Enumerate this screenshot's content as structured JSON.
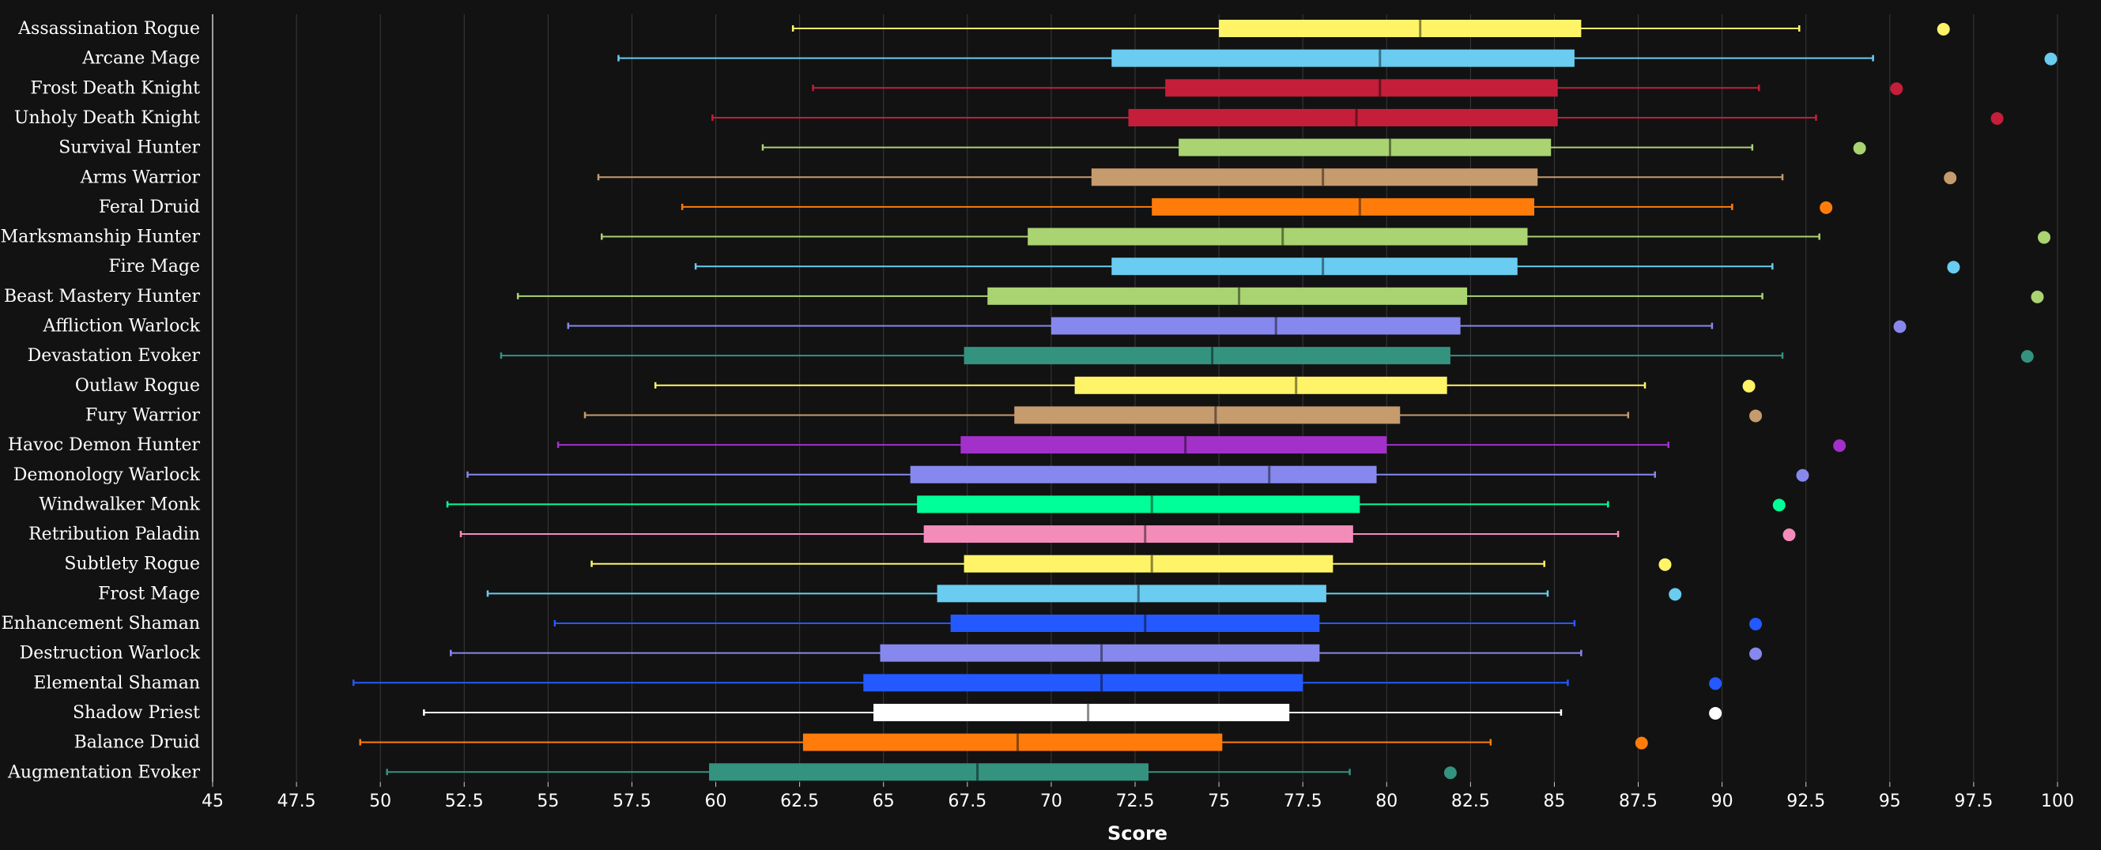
{
  "chart_data": {
    "type": "boxplot",
    "xlabel": "Score",
    "xlim": [
      45,
      100
    ],
    "xticks": [
      "45",
      "47.5",
      "50",
      "52.5",
      "55",
      "57.5",
      "60",
      "62.5",
      "65",
      "67.5",
      "70",
      "72.5",
      "75",
      "77.5",
      "80",
      "82.5",
      "85",
      "87.5",
      "90",
      "92.5",
      "95",
      "97.5",
      "100"
    ],
    "grid": "vertical",
    "series": [
      {
        "name": "Assassination Rogue",
        "color": "#FFF468",
        "min": 62.3,
        "q1": 75.0,
        "median": 81.0,
        "q3": 85.8,
        "max": 92.3,
        "outlier": 96.6
      },
      {
        "name": "Arcane Mage",
        "color": "#69CCF0",
        "min": 57.1,
        "q1": 71.8,
        "median": 79.8,
        "q3": 85.6,
        "max": 94.5,
        "outlier": 99.8
      },
      {
        "name": "Frost Death Knight",
        "color": "#C41E3A",
        "min": 62.9,
        "q1": 73.4,
        "median": 79.8,
        "q3": 85.1,
        "max": 91.1,
        "outlier": 95.2
      },
      {
        "name": "Unholy Death Knight",
        "color": "#C41E3A",
        "min": 59.9,
        "q1": 72.3,
        "median": 79.1,
        "q3": 85.1,
        "max": 92.8,
        "outlier": 98.2
      },
      {
        "name": "Survival Hunter",
        "color": "#AAD372",
        "min": 61.4,
        "q1": 73.8,
        "median": 80.1,
        "q3": 84.9,
        "max": 90.9,
        "outlier": 94.1
      },
      {
        "name": "Arms Warrior",
        "color": "#C69B6D",
        "min": 56.5,
        "q1": 71.2,
        "median": 78.1,
        "q3": 84.5,
        "max": 91.8,
        "outlier": 96.8
      },
      {
        "name": "Feral Druid",
        "color": "#FF7C0A",
        "min": 59.0,
        "q1": 73.0,
        "median": 79.2,
        "q3": 84.4,
        "max": 90.3,
        "outlier": 93.1
      },
      {
        "name": "Marksmanship Hunter",
        "color": "#AAD372",
        "min": 56.6,
        "q1": 69.3,
        "median": 76.9,
        "q3": 84.2,
        "max": 92.9,
        "outlier": 99.6
      },
      {
        "name": "Fire Mage",
        "color": "#69CCF0",
        "min": 59.4,
        "q1": 71.8,
        "median": 78.1,
        "q3": 83.9,
        "max": 91.5,
        "outlier": 96.9
      },
      {
        "name": "Beast Mastery Hunter",
        "color": "#AAD372",
        "min": 54.1,
        "q1": 68.1,
        "median": 75.6,
        "q3": 82.4,
        "max": 91.2,
        "outlier": 99.4
      },
      {
        "name": "Affliction Warlock",
        "color": "#8788EE",
        "min": 55.6,
        "q1": 70.0,
        "median": 76.7,
        "q3": 82.2,
        "max": 89.7,
        "outlier": 95.3
      },
      {
        "name": "Devastation Evoker",
        "color": "#33937F",
        "min": 53.6,
        "q1": 67.4,
        "median": 74.8,
        "q3": 81.9,
        "max": 91.8,
        "outlier": 99.1
      },
      {
        "name": "Outlaw Rogue",
        "color": "#FFF468",
        "min": 58.2,
        "q1": 70.7,
        "median": 77.3,
        "q3": 81.8,
        "max": 87.7,
        "outlier": 90.8
      },
      {
        "name": "Fury Warrior",
        "color": "#C69B6D",
        "min": 56.1,
        "q1": 68.9,
        "median": 74.9,
        "q3": 80.4,
        "max": 87.2,
        "outlier": 91.0
      },
      {
        "name": "Havoc Demon Hunter",
        "color": "#A330C9",
        "min": 55.3,
        "q1": 67.3,
        "median": 74.0,
        "q3": 80.0,
        "max": 88.4,
        "outlier": 93.5
      },
      {
        "name": "Demonology Warlock",
        "color": "#8788EE",
        "min": 52.6,
        "q1": 65.8,
        "median": 76.5,
        "q3": 79.7,
        "max": 88.0,
        "outlier": 92.4
      },
      {
        "name": "Windwalker Monk",
        "color": "#00FF98",
        "min": 52.0,
        "q1": 66.0,
        "median": 73.0,
        "q3": 79.2,
        "max": 86.6,
        "outlier": 91.7
      },
      {
        "name": "Retribution Paladin",
        "color": "#F48CBA",
        "min": 52.4,
        "q1": 66.2,
        "median": 72.8,
        "q3": 79.0,
        "max": 86.9,
        "outlier": 92.0
      },
      {
        "name": "Subtlety Rogue",
        "color": "#FFF468",
        "min": 56.3,
        "q1": 67.4,
        "median": 73.0,
        "q3": 78.4,
        "max": 84.7,
        "outlier": 88.3
      },
      {
        "name": "Frost Mage",
        "color": "#69CCF0",
        "min": 53.2,
        "q1": 66.6,
        "median": 72.6,
        "q3": 78.2,
        "max": 84.8,
        "outlier": 88.6
      },
      {
        "name": "Enhancement Shaman",
        "color": "#2459FF",
        "min": 55.2,
        "q1": 67.0,
        "median": 72.8,
        "q3": 78.0,
        "max": 85.6,
        "outlier": 91.0
      },
      {
        "name": "Destruction Warlock",
        "color": "#8788EE",
        "min": 52.1,
        "q1": 64.9,
        "median": 71.5,
        "q3": 78.0,
        "max": 85.8,
        "outlier": 91.0
      },
      {
        "name": "Elemental Shaman",
        "color": "#2459FF",
        "min": 49.2,
        "q1": 64.4,
        "median": 71.5,
        "q3": 77.5,
        "max": 85.4,
        "outlier": 89.8
      },
      {
        "name": "Shadow Priest",
        "color": "#FFFFFF",
        "min": 51.3,
        "q1": 64.7,
        "median": 71.1,
        "q3": 77.1,
        "max": 85.2,
        "outlier": 89.8
      },
      {
        "name": "Balance Druid",
        "color": "#FF7C0A",
        "min": 49.4,
        "q1": 62.6,
        "median": 69.0,
        "q3": 75.1,
        "max": 83.1,
        "outlier": 87.6
      },
      {
        "name": "Augmentation Evoker",
        "color": "#33937F",
        "min": 50.2,
        "q1": 59.8,
        "median": 67.8,
        "q3": 72.9,
        "max": 78.9,
        "outlier": 81.9
      }
    ]
  }
}
